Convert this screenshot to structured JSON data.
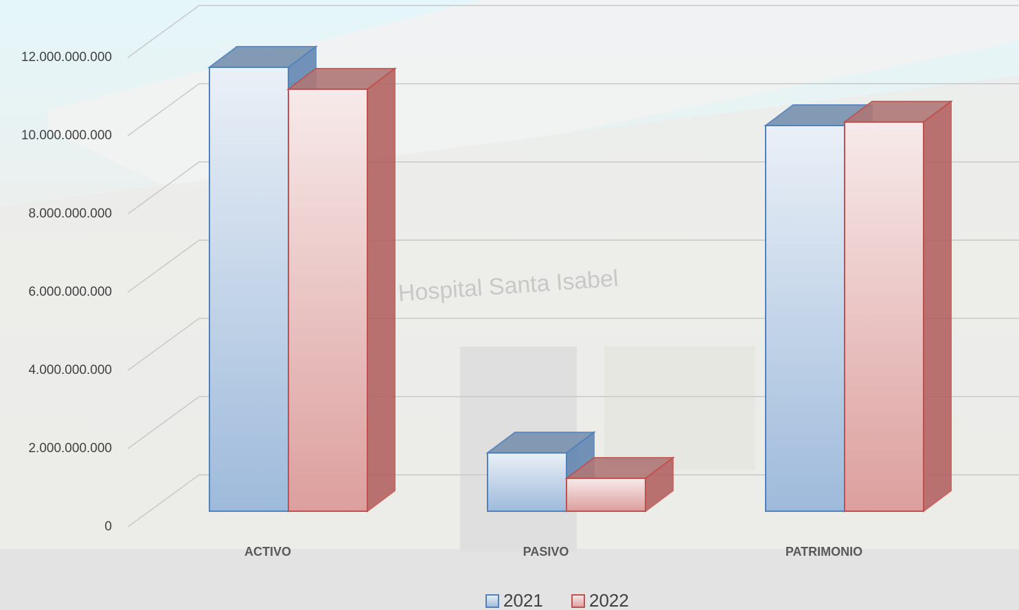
{
  "chart_data": {
    "type": "bar3d",
    "categories": [
      "ACTIVO",
      "PASIVO",
      "PATRIMONIO"
    ],
    "series": [
      {
        "name": "2021",
        "color": "#4f81bd",
        "values": [
          11350000000,
          1490000000,
          9860000000
        ]
      },
      {
        "name": "2022",
        "color": "#c0504d",
        "values": [
          10790000000,
          840000000,
          9950000000
        ]
      }
    ],
    "ylim": [
      0,
      12000000000
    ],
    "yticks": [
      0,
      {
        "value": 2000000000,
        "label": "2.000.000.000"
      },
      {
        "value": 4000000000,
        "label": "4.000.000.000"
      },
      {
        "value": 6000000000,
        "label": "6.000.000.000"
      },
      {
        "value": 8000000000,
        "label": "8.000.000.000"
      },
      {
        "value": 10000000000,
        "label": "10.000.000.000"
      },
      {
        "value": 12000000000,
        "label": "12.000.000.000"
      }
    ],
    "grid": true,
    "legend": "bottom"
  }
}
